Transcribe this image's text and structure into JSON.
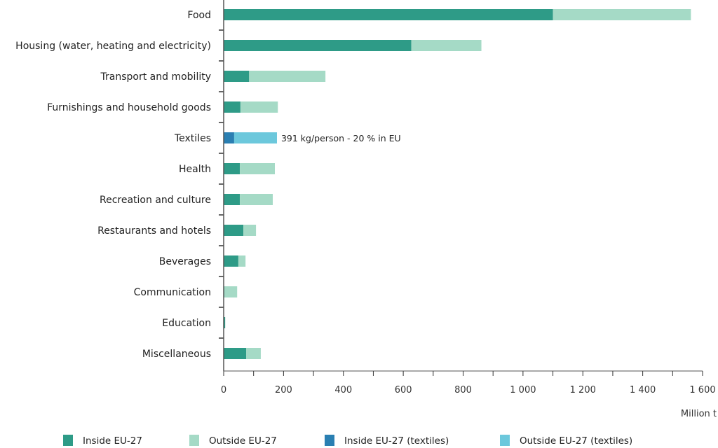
{
  "chart_data": {
    "type": "bar",
    "orientation": "horizontal",
    "stacked": true,
    "categories": [
      "Food",
      "Housing (water, heating and electricity)",
      "Transport and mobility",
      "Furnishings and household goods",
      "Textiles",
      "Health",
      "Recreation and culture",
      "Restaurants and hotels",
      "Beverages",
      "Communication",
      "Education",
      "Miscellaneous"
    ],
    "series": [
      {
        "name": "Inside EU-27",
        "values": [
          1100,
          627,
          85,
          56,
          null,
          54,
          54,
          66,
          49,
          2,
          5,
          75
        ],
        "color": "#2e9b87"
      },
      {
        "name": "Outside EU-27",
        "values": [
          461,
          234,
          255,
          125,
          null,
          117,
          110,
          42,
          24,
          43,
          0,
          49
        ],
        "color": "#a5dac6"
      },
      {
        "name": "Inside EU-27 (textiles)",
        "values": [
          null,
          null,
          null,
          null,
          35,
          null,
          null,
          null,
          null,
          null,
          null,
          null
        ],
        "color": "#2a7fb2"
      },
      {
        "name": "Outside EU-27 (textiles)",
        "values": [
          null,
          null,
          null,
          null,
          143,
          null,
          null,
          null,
          null,
          null,
          null,
          null
        ],
        "color": "#6cc8dc"
      }
    ],
    "annotation": {
      "category": "Textiles",
      "text": "391 kg/person - 20 % in EU"
    },
    "xlabel": "Million t",
    "xlim": [
      0,
      1600
    ],
    "xticks": [
      0,
      200,
      400,
      600,
      800,
      1000,
      1200,
      1400,
      1600
    ],
    "xtick_labels": [
      "0",
      "200",
      "400",
      "600",
      "800",
      "1 000",
      "1 200",
      "1 400",
      "1 600"
    ],
    "grid": false,
    "legend_position": "bottom"
  }
}
